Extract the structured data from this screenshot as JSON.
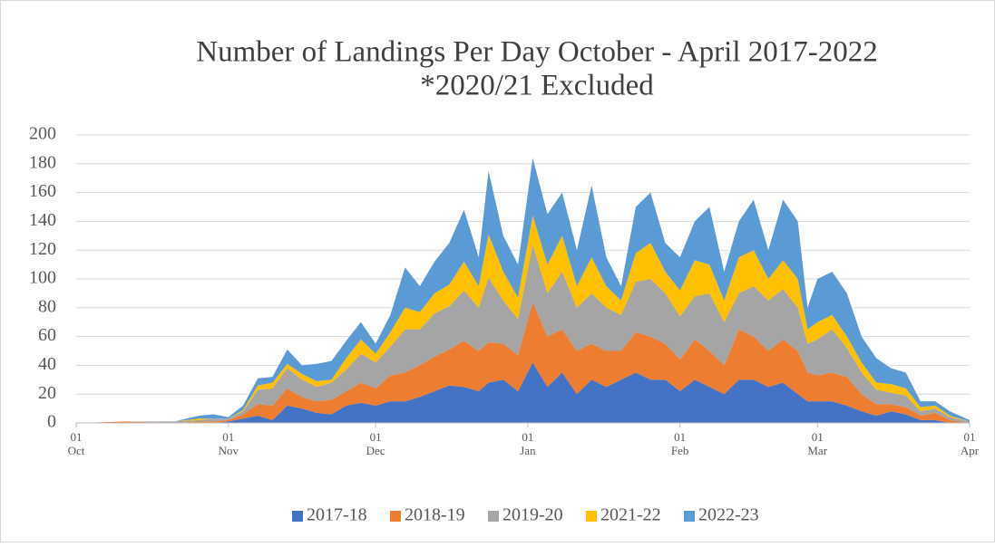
{
  "chart_data": {
    "type": "stacked_area",
    "title": "Number of Landings Per Day October - April 2017-2022",
    "subtitle": "*2020/21 Excluded",
    "x": [
      0,
      10,
      20,
      25,
      28,
      31,
      34,
      37,
      40,
      43,
      46,
      49,
      52,
      55,
      58,
      61,
      64,
      67,
      70,
      73,
      76,
      79,
      82,
      84,
      87,
      90,
      93,
      96,
      99,
      102,
      105,
      108,
      111,
      114,
      117,
      120,
      123,
      126,
      129,
      132,
      135,
      138,
      141,
      144,
      147,
      149,
      151,
      154,
      157,
      160,
      163,
      166,
      169,
      172,
      175,
      178,
      182
    ],
    "xlim": [
      0,
      182
    ],
    "xticks": [
      {
        "value": 0,
        "label": "01 Oct"
      },
      {
        "value": 31,
        "label": "01 Nov"
      },
      {
        "value": 61,
        "label": "01 Dec"
      },
      {
        "value": 92,
        "label": "01 Jan"
      },
      {
        "value": 123,
        "label": "01 Feb"
      },
      {
        "value": 151,
        "label": "01 Mar"
      },
      {
        "value": 182,
        "label": "01 Apr"
      }
    ],
    "ylim": [
      0,
      200
    ],
    "yticks": [
      0,
      20,
      40,
      60,
      80,
      100,
      120,
      140,
      160,
      180,
      200
    ],
    "grid": true,
    "legend": "bottom",
    "series": [
      {
        "name": "2017-18",
        "color": "#4472c4",
        "values": [
          0,
          0,
          0,
          0,
          0,
          1,
          3,
          5,
          2,
          12,
          10,
          7,
          6,
          12,
          14,
          12,
          15,
          15,
          18,
          22,
          26,
          25,
          22,
          28,
          30,
          22,
          42,
          25,
          35,
          20,
          30,
          25,
          30,
          35,
          30,
          30,
          22,
          30,
          25,
          20,
          30,
          30,
          25,
          28,
          20,
          15,
          15,
          15,
          12,
          8,
          5,
          8,
          6,
          2,
          2,
          0,
          0
        ]
      },
      {
        "name": "2018-19",
        "color": "#ed7d31",
        "values": [
          0,
          1,
          0,
          1,
          1,
          1,
          3,
          8,
          10,
          12,
          8,
          8,
          10,
          10,
          14,
          12,
          18,
          20,
          22,
          24,
          25,
          32,
          28,
          28,
          25,
          25,
          42,
          35,
          30,
          30,
          25,
          25,
          20,
          28,
          30,
          25,
          22,
          28,
          25,
          20,
          35,
          30,
          25,
          30,
          30,
          20,
          18,
          20,
          20,
          12,
          8,
          5,
          5,
          3,
          5,
          2,
          0
        ]
      },
      {
        "name": "2019-20",
        "color": "#a5a5a5",
        "values": [
          0,
          0,
          1,
          1,
          2,
          1,
          2,
          10,
          12,
          14,
          12,
          10,
          12,
          15,
          20,
          18,
          20,
          30,
          25,
          30,
          30,
          35,
          30,
          45,
          30,
          25,
          40,
          30,
          40,
          30,
          35,
          30,
          25,
          35,
          40,
          35,
          30,
          30,
          40,
          30,
          25,
          35,
          35,
          35,
          30,
          20,
          25,
          30,
          20,
          15,
          10,
          8,
          8,
          3,
          3,
          2,
          1
        ]
      },
      {
        "name": "2021-22",
        "color": "#ffc000",
        "values": [
          0,
          0,
          0,
          1,
          0,
          0,
          1,
          3,
          4,
          3,
          4,
          4,
          2,
          8,
          10,
          6,
          10,
          15,
          12,
          14,
          15,
          20,
          15,
          30,
          20,
          15,
          20,
          20,
          25,
          15,
          25,
          15,
          10,
          20,
          25,
          15,
          18,
          25,
          20,
          15,
          25,
          25,
          15,
          20,
          20,
          10,
          12,
          10,
          8,
          7,
          5,
          6,
          5,
          3,
          2,
          1,
          0
        ]
      },
      {
        "name": "2022-23",
        "color": "#5b9bd5",
        "values": [
          0,
          0,
          0,
          2,
          3,
          1,
          3,
          5,
          4,
          10,
          6,
          12,
          13,
          12,
          12,
          7,
          12,
          28,
          18,
          22,
          29,
          36,
          20,
          44,
          25,
          23,
          40,
          35,
          30,
          25,
          50,
          20,
          10,
          32,
          35,
          20,
          23,
          27,
          40,
          20,
          25,
          35,
          20,
          42,
          40,
          15,
          30,
          30,
          30,
          18,
          17,
          11,
          11,
          4,
          3,
          3,
          1
        ]
      }
    ]
  }
}
